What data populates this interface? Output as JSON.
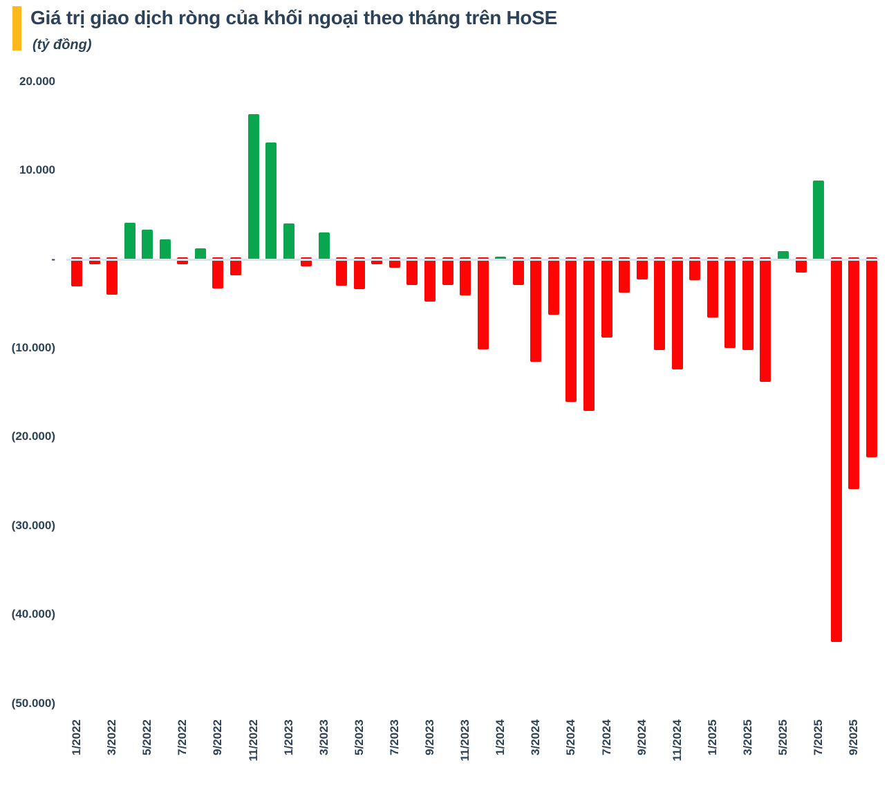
{
  "header": {
    "title": "Giá trị giao dịch ròng của khối ngoại theo tháng trên HoSE",
    "subtitle": "(tỷ đồng)"
  },
  "colors": {
    "accent": "#ffb81c",
    "positive_bar": "#0aa64f",
    "negative_bar": "#fb0505",
    "axis_text": "#2d4257",
    "zero_line": "#dde3ea",
    "background": "#ffffff"
  },
  "chart_data": {
    "type": "bar",
    "title": "Giá trị giao dịch ròng của khối ngoại theo tháng trên HoSE",
    "unit": "tỷ đồng",
    "grid": false,
    "ylim": [
      -50000,
      20000
    ],
    "categories": [
      "1/2022",
      "2/2022",
      "3/2022",
      "4/2022",
      "5/2022",
      "6/2022",
      "7/2022",
      "8/2022",
      "9/2022",
      "10/2022",
      "11/2022",
      "12/2022",
      "1/2023",
      "2/2023",
      "3/2023",
      "4/2023",
      "5/2023",
      "6/2023",
      "7/2023",
      "8/2023",
      "9/2023",
      "10/2023",
      "11/2023",
      "12/2023",
      "1/2024",
      "2/2024",
      "3/2024",
      "4/2024",
      "5/2024",
      "6/2024",
      "7/2024",
      "8/2024",
      "9/2024",
      "10/2024",
      "11/2024",
      "12/2024",
      "1/2025",
      "2/2025",
      "3/2025",
      "4/2025",
      "5/2025",
      "6/2025",
      "7/2025",
      "8/2025",
      "9/2025",
      "10/2025"
    ],
    "values": [
      -3100,
      -600,
      -4000,
      4100,
      3300,
      2200,
      -600,
      1200,
      -3300,
      -1800,
      16350,
      13100,
      4000,
      -800,
      3000,
      -3000,
      -3350,
      -600,
      -1000,
      -2900,
      -4750,
      -2950,
      -4050,
      -10200,
      250,
      -2950,
      -11600,
      -6300,
      -16100,
      -17100,
      -8800,
      -3800,
      -2300,
      -10250,
      -12400,
      -2400,
      -6600,
      -10000,
      -10250,
      -13850,
      900,
      -1500,
      8850,
      -43100,
      -25900,
      -22300
    ],
    "x_tick_labels": [
      "1/2022",
      "3/2022",
      "5/2022",
      "7/2022",
      "9/2022",
      "11/2022",
      "1/2023",
      "3/2023",
      "5/2023",
      "7/2023",
      "9/2023",
      "11/2023",
      "1/2024",
      "3/2024",
      "5/2024",
      "7/2024",
      "9/2024",
      "11/2024",
      "1/2025",
      "3/2025",
      "5/2025",
      "7/2025",
      "9/2025"
    ],
    "y_ticks": [
      {
        "value": 20000,
        "label": "20.000"
      },
      {
        "value": 10000,
        "label": "10.000"
      },
      {
        "value": 0,
        "label": "-"
      },
      {
        "value": -10000,
        "label": "(10.000)"
      },
      {
        "value": -20000,
        "label": "(20.000)"
      },
      {
        "value": -30000,
        "label": "(30.000)"
      },
      {
        "value": -40000,
        "label": "(40.000)"
      },
      {
        "value": -50000,
        "label": "(50.000)"
      }
    ],
    "legend_position": "none"
  }
}
